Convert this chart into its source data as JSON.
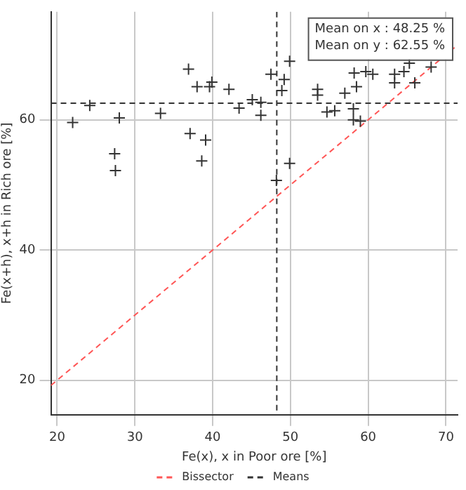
{
  "chart_data": {
    "type": "scatter",
    "xlabel": "Fe(x), x in Poor ore [%]",
    "ylabel": "Fe(x+h), x+h in Rich ore [%]",
    "xlim": [
      19.2,
      71.5
    ],
    "xticks": [
      20,
      30,
      40,
      50,
      60,
      70
    ],
    "ylim": [
      14.7,
      76.6
    ],
    "yticks": [
      20,
      40,
      60
    ],
    "grid": true,
    "marker": "cross",
    "legend": "bottom",
    "series": [
      {
        "color": "#333333",
        "x": [
          22.0,
          24.2,
          28.0,
          27.4,
          27.5,
          33.3,
          36.9,
          37.1,
          38.0,
          39.1,
          38.6,
          39.6,
          39.9,
          42.1,
          43.4,
          45.1,
          46.2,
          46.2,
          47.5,
          48.2,
          49.2,
          48.9,
          49.9,
          49.9,
          53.5,
          53.5,
          54.7,
          55.7,
          57.0,
          58.2,
          58.5,
          58.1,
          58.1,
          59.0,
          59.7,
          60.6,
          63.4,
          63.4,
          64.6,
          65.3,
          66.0,
          68.1
        ],
        "values": [
          59.6,
          62.2,
          60.3,
          54.8,
          52.2,
          61.0,
          67.8,
          57.9,
          65.1,
          56.9,
          53.7,
          65.1,
          65.8,
          64.7,
          61.8,
          63.1,
          62.7,
          60.7,
          67.0,
          50.7,
          66.2,
          64.5,
          69.0,
          53.3,
          64.7,
          63.8,
          61.2,
          61.4,
          64.1,
          67.2,
          65.1,
          61.7,
          60.0,
          59.8,
          67.4,
          67.0,
          67.0,
          65.7,
          67.4,
          68.7,
          65.7,
          68.1
        ]
      },
      {
        "type": "line",
        "name": "Bissector",
        "color": "#ff5555",
        "line_style": "dashed",
        "marker": "none",
        "x": [
          19.2,
          71.5
        ],
        "values": [
          19.2,
          71.5
        ]
      }
    ],
    "ref_lines": [
      {
        "axis": "x",
        "value": 48.25,
        "label": "Means",
        "color": "#333333",
        "line_style": "dashed"
      },
      {
        "axis": "y",
        "value": 62.55,
        "color": "#333333",
        "line_style": "dashed"
      }
    ],
    "annotations": [
      "Mean on x : 48.25 %",
      "Mean on y : 62.55 %"
    ]
  }
}
